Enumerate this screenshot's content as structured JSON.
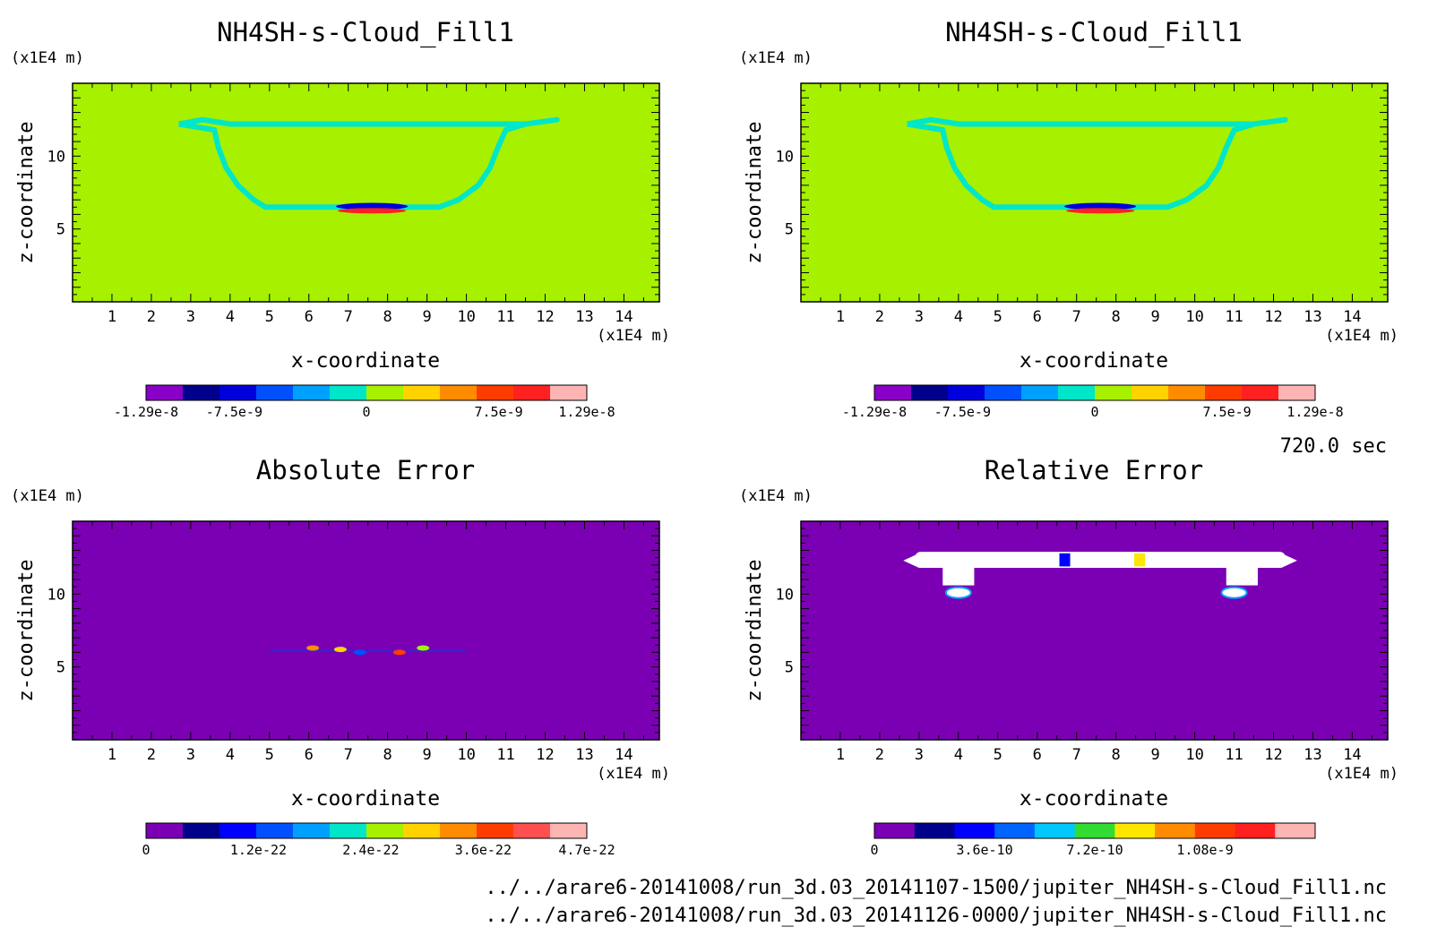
{
  "time_label": "720.0 sec",
  "files": [
    "../../arare6-20141008/run_3d.03_20141107-1500/jupiter_NH4SH-s-Cloud_Fill1.nc",
    "../../arare6-20141008/run_3d.03_20141126-0000/jupiter_NH4SH-s-Cloud_Fill1.nc"
  ],
  "colors": {
    "background_field": "#a6f000",
    "error_background": "#7b00b4",
    "high": "#ff2020",
    "low": "#0000cc"
  },
  "chart_data": [
    {
      "type": "heatmap",
      "title": "NH4SH-s-Cloud_Fill1",
      "xlabel": "x-coordinate",
      "ylabel": "z-coordinate",
      "x_unit": "(x1E4 m)",
      "y_unit": "(x1E4 m)",
      "xlim": [
        0,
        14.9
      ],
      "ylim": [
        0,
        15
      ],
      "xticks": [
        "1",
        "2",
        "3",
        "4",
        "5",
        "6",
        "7",
        "8",
        "9",
        "10",
        "11",
        "12",
        "13",
        "14"
      ],
      "yticks": [
        "5",
        "10"
      ],
      "field": "cloud",
      "colorbar": {
        "labels": [
          "-1.29e-8",
          "-7.5e-9",
          "0",
          "7.5e-9",
          "1.29e-8"
        ],
        "colors": [
          "#8a00c8",
          "#00008c",
          "#0000dc",
          "#0050ff",
          "#00a0ff",
          "#00e6c8",
          "#a6f000",
          "#ffd200",
          "#ff8c00",
          "#ff3c00",
          "#ff2020",
          "#ffb4b4"
        ]
      }
    },
    {
      "type": "heatmap",
      "title": "NH4SH-s-Cloud_Fill1",
      "xlabel": "x-coordinate",
      "ylabel": "z-coordinate",
      "x_unit": "(x1E4 m)",
      "y_unit": "(x1E4 m)",
      "xlim": [
        0,
        14.9
      ],
      "ylim": [
        0,
        15
      ],
      "xticks": [
        "1",
        "2",
        "3",
        "4",
        "5",
        "6",
        "7",
        "8",
        "9",
        "10",
        "11",
        "12",
        "13",
        "14"
      ],
      "yticks": [
        "5",
        "10"
      ],
      "field": "cloud",
      "colorbar": {
        "labels": [
          "-1.29e-8",
          "-7.5e-9",
          "0",
          "7.5e-9",
          "1.29e-8"
        ],
        "colors": [
          "#8a00c8",
          "#00008c",
          "#0000dc",
          "#0050ff",
          "#00a0ff",
          "#00e6c8",
          "#a6f000",
          "#ffd200",
          "#ff8c00",
          "#ff3c00",
          "#ff2020",
          "#ffb4b4"
        ]
      }
    },
    {
      "type": "heatmap",
      "title": "Absolute Error",
      "xlabel": "x-coordinate",
      "ylabel": "z-coordinate",
      "x_unit": "(x1E4 m)",
      "y_unit": "(x1E4 m)",
      "xlim": [
        0,
        14.9
      ],
      "ylim": [
        0,
        15
      ],
      "xticks": [
        "1",
        "2",
        "3",
        "4",
        "5",
        "6",
        "7",
        "8",
        "9",
        "10",
        "11",
        "12",
        "13",
        "14"
      ],
      "yticks": [
        "5",
        "10"
      ],
      "field": "abs_error",
      "colorbar": {
        "labels": [
          "0",
          "1.2e-22",
          "2.4e-22",
          "3.6e-22",
          "4.7e-22"
        ],
        "colors": [
          "#7b00b4",
          "#00008c",
          "#0000ff",
          "#0050ff",
          "#00a0ff",
          "#00e6c8",
          "#a6f000",
          "#ffd200",
          "#ff8c00",
          "#ff3c00",
          "#ff5050",
          "#ffb4b4"
        ]
      }
    },
    {
      "type": "heatmap",
      "title": "Relative Error",
      "xlabel": "x-coordinate",
      "ylabel": "z-coordinate",
      "x_unit": "(x1E4 m)",
      "y_unit": "(x1E4 m)",
      "xlim": [
        0,
        14.9
      ],
      "ylim": [
        0,
        15
      ],
      "xticks": [
        "1",
        "2",
        "3",
        "4",
        "5",
        "6",
        "7",
        "8",
        "9",
        "10",
        "11",
        "12",
        "13",
        "14"
      ],
      "yticks": [
        "5",
        "10"
      ],
      "field": "rel_error",
      "colorbar": {
        "labels": [
          "0",
          "3.6e-10",
          "7.2e-10",
          "1.08e-9"
        ],
        "colors": [
          "#7b00b4",
          "#00008c",
          "#0000ff",
          "#0064ff",
          "#00c8ff",
          "#32dc32",
          "#ffe600",
          "#ff8c00",
          "#ff3c00",
          "#ff2020",
          "#ffb4b4"
        ]
      }
    }
  ]
}
